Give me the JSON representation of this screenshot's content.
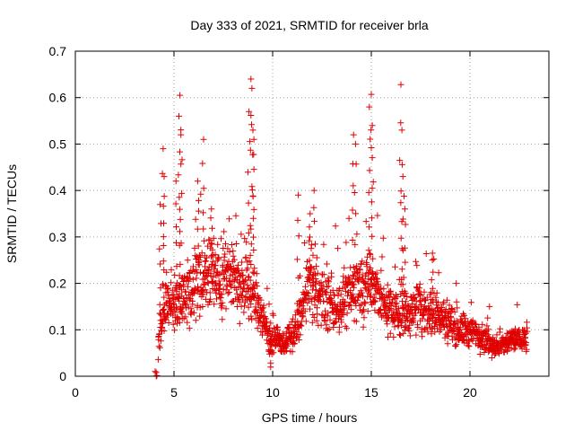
{
  "chart_data": {
    "type": "scatter",
    "title": "Day 333 of 2021, SRMTID for receiver brla",
    "xlabel": "GPS time / hours",
    "ylabel": "SRMTID / TECUs",
    "xlim": [
      0,
      24
    ],
    "ylim": [
      0,
      0.7
    ],
    "xticks": [
      0,
      5,
      10,
      15,
      20
    ],
    "xtick_labels": [
      "0",
      "5",
      "10",
      "15",
      "20"
    ],
    "yticks": [
      0,
      0.1,
      0.2,
      0.3,
      0.4,
      0.5,
      0.6,
      0.7
    ],
    "ytick_labels": [
      "0",
      "0.1",
      "0.2",
      "0.3",
      "0.4",
      "0.5",
      "0.6",
      "0.7"
    ],
    "grid": true,
    "marker": "+",
    "color": "#e00000",
    "series": [
      {
        "name": "brla",
        "x_start": 4.1,
        "x_end": 22.9,
        "profile_points": [
          {
            "x": 4.1,
            "median": 0.0
          },
          {
            "x": 4.25,
            "median": 0.09
          },
          {
            "x": 4.6,
            "median": 0.16
          },
          {
            "x": 5.2,
            "median": 0.15
          },
          {
            "x": 6.0,
            "median": 0.2
          },
          {
            "x": 6.8,
            "median": 0.22
          },
          {
            "x": 7.6,
            "median": 0.22
          },
          {
            "x": 8.4,
            "median": 0.2
          },
          {
            "x": 9.2,
            "median": 0.16
          },
          {
            "x": 9.9,
            "median": 0.08
          },
          {
            "x": 10.6,
            "median": 0.07
          },
          {
            "x": 11.2,
            "median": 0.1
          },
          {
            "x": 11.9,
            "median": 0.2
          },
          {
            "x": 12.6,
            "median": 0.16
          },
          {
            "x": 13.4,
            "median": 0.15
          },
          {
            "x": 14.2,
            "median": 0.19
          },
          {
            "x": 15.0,
            "median": 0.2
          },
          {
            "x": 15.7,
            "median": 0.15
          },
          {
            "x": 16.5,
            "median": 0.13
          },
          {
            "x": 17.5,
            "median": 0.15
          },
          {
            "x": 18.5,
            "median": 0.13
          },
          {
            "x": 19.5,
            "median": 0.1
          },
          {
            "x": 20.5,
            "median": 0.09
          },
          {
            "x": 21.4,
            "median": 0.06
          },
          {
            "x": 22.2,
            "median": 0.08
          },
          {
            "x": 22.9,
            "median": 0.08
          }
        ],
        "peaks": [
          {
            "x": 4.3,
            "y": 0.37
          },
          {
            "x": 4.45,
            "y": 0.49
          },
          {
            "x": 4.5,
            "y": 0.43
          },
          {
            "x": 5.1,
            "y": 0.42
          },
          {
            "x": 5.25,
            "y": 0.56
          },
          {
            "x": 5.3,
            "y": 0.605
          },
          {
            "x": 5.35,
            "y": 0.52
          },
          {
            "x": 6.5,
            "y": 0.51
          },
          {
            "x": 6.2,
            "y": 0.42
          },
          {
            "x": 6.9,
            "y": 0.36
          },
          {
            "x": 8.9,
            "y": 0.64
          },
          {
            "x": 8.95,
            "y": 0.62
          },
          {
            "x": 8.8,
            "y": 0.57
          },
          {
            "x": 9.0,
            "y": 0.53
          },
          {
            "x": 9.05,
            "y": 0.51
          },
          {
            "x": 11.3,
            "y": 0.39
          },
          {
            "x": 11.9,
            "y": 0.35
          },
          {
            "x": 12.1,
            "y": 0.4
          },
          {
            "x": 14.1,
            "y": 0.52
          },
          {
            "x": 14.2,
            "y": 0.5
          },
          {
            "x": 14.9,
            "y": 0.58
          },
          {
            "x": 15.0,
            "y": 0.607
          },
          {
            "x": 15.05,
            "y": 0.54
          },
          {
            "x": 16.5,
            "y": 0.628
          },
          {
            "x": 16.55,
            "y": 0.53
          },
          {
            "x": 16.6,
            "y": 0.43
          },
          {
            "x": 16.7,
            "y": 0.36
          },
          {
            "x": 18.1,
            "y": 0.265
          },
          {
            "x": 9.9,
            "y": 0.02
          },
          {
            "x": 4.1,
            "y": 0.0
          }
        ]
      }
    ]
  }
}
